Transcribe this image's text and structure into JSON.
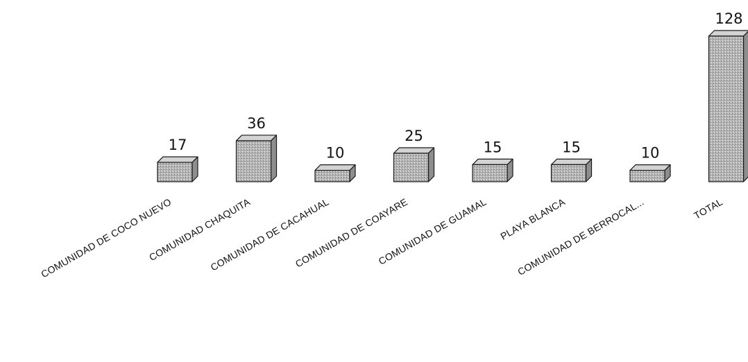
{
  "chart_data": {
    "type": "bar",
    "title": "",
    "xlabel": "",
    "ylabel": "",
    "categories": [
      "COMUNIDAD DE COCO NUEVO",
      "COMUNIDAD  CHAQUITA",
      "COMUNIDAD DE CACAHUAL",
      "COMUNIDAD DE COAYARE",
      "COMUNIDAD DE GUAMAL",
      "PLAYA BLANCA",
      "COMUNIDAD DE BERROCAL...",
      "TOTAL"
    ],
    "values": [
      17,
      36,
      10,
      25,
      15,
      15,
      10,
      128
    ],
    "data_labels": [
      "17",
      "36",
      "10",
      "25",
      "15",
      "15",
      "10",
      "128"
    ],
    "ylim": [
      0,
      128
    ],
    "grid": false,
    "legend": "none",
    "bar_style": "3d-box",
    "colors": {
      "bar_fill": "#b9b9b9",
      "bar_top": "#d3d3d3",
      "bar_side": "#8e8e8e",
      "outline": "#1a1a1a"
    }
  }
}
